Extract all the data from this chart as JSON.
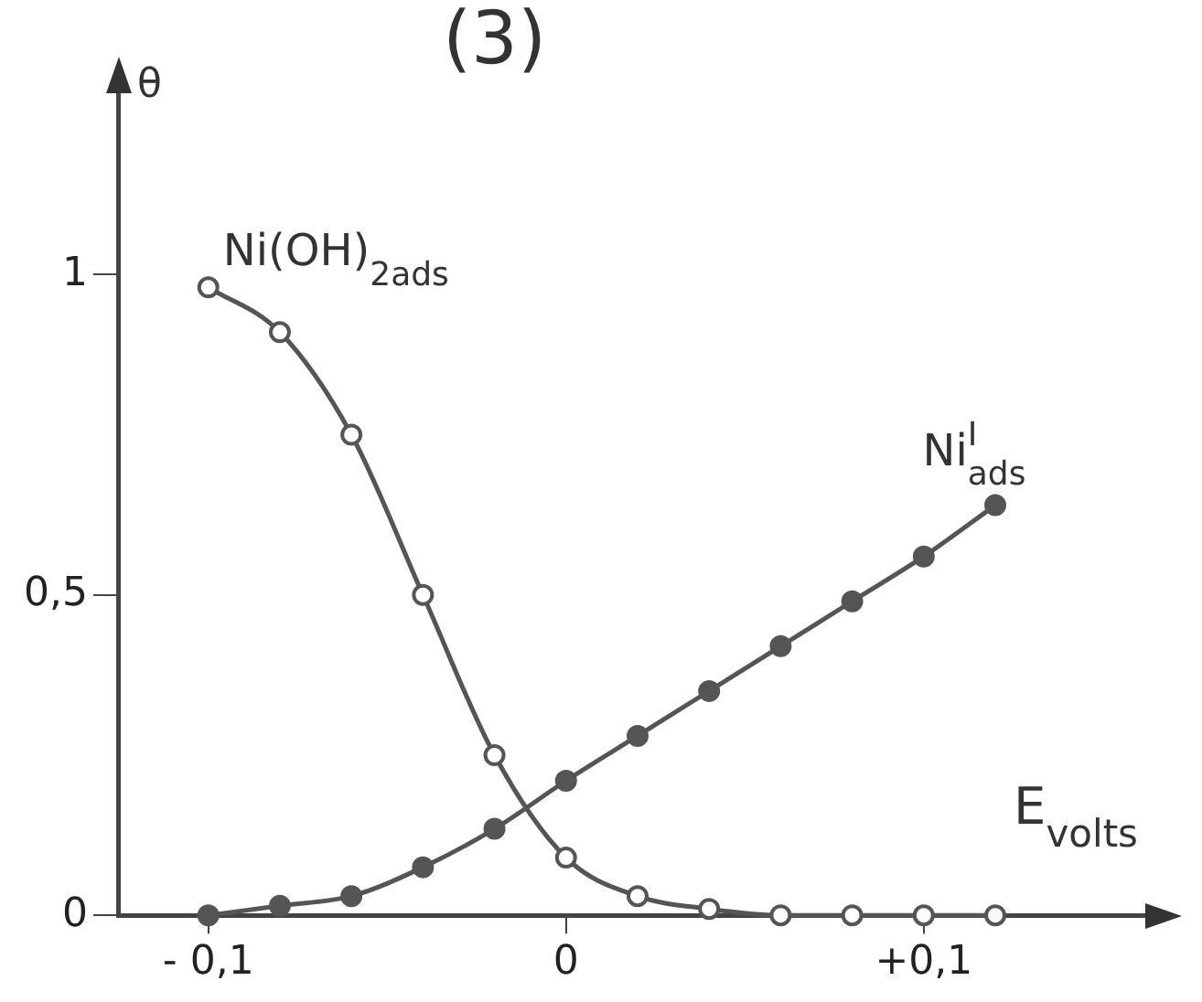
{
  "chart_data": {
    "type": "line",
    "title": "(3)",
    "xlabel": "E$_{volts}$",
    "ylabel": "θ",
    "x": [
      -0.1,
      -0.08,
      -0.06,
      -0.04,
      -0.02,
      0,
      0.02,
      0.04,
      0.06,
      0.08,
      0.1,
      0.12
    ],
    "series": [
      {
        "name": "Ni(OH)$_{2ads}$",
        "color": "#555555",
        "values": [
          0.98,
          0.91,
          0.75,
          0.5,
          0.25,
          0.09,
          0.03,
          0.01,
          0,
          0,
          0,
          0
        ]
      },
      {
        "name": "Ni$^{I}$$_{ads}$",
        "color": "#555555",
        "values": [
          0,
          0.015,
          0.03,
          0.075,
          0.135,
          0.21,
          0.28,
          0.35,
          0.42,
          0.49,
          0.56,
          0.64
        ]
      }
    ],
    "xlim": [
      -0.125,
      0.165
    ],
    "ylim": [
      0,
      1.3
    ],
    "xticks": [
      {
        "value": -0.1,
        "label": "- 0,1"
      },
      0,
      {
        "value": 0.1,
        "label": "+0,1"
      }
    ],
    "yticks": [
      0,
      {
        "value": 0.5,
        "label": "0,5"
      },
      1
    ],
    "grid": false,
    "legend": false,
    "marker": "circle",
    "line_style": "solid"
  }
}
